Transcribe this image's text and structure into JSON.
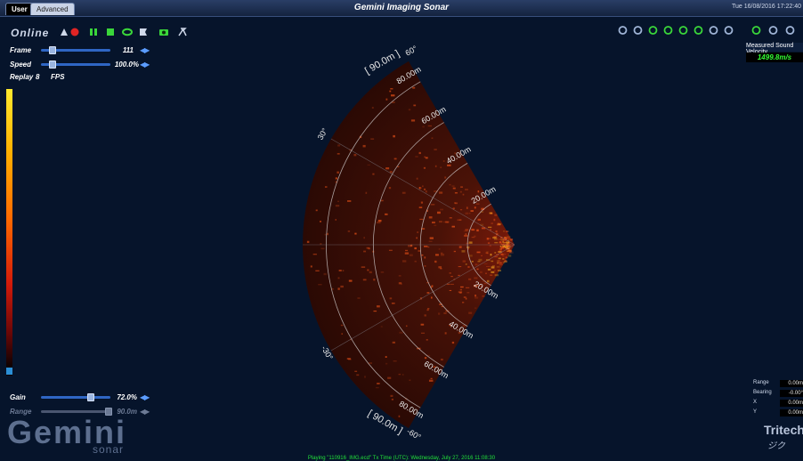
{
  "window": {
    "title": "Gemini Imaging Sonar",
    "tabs": [
      {
        "label": "User",
        "active": true
      },
      {
        "label": "Advanced",
        "active": false
      }
    ],
    "datetime": "Tue 16/08/2016 17:22:40"
  },
  "toolbar": {
    "mode_label": "Online",
    "icons": [
      "sonar-icon",
      "record-icon",
      "pause-icon",
      "stop-icon",
      "loop-icon",
      "bookmark-icon",
      "screenshot-icon",
      "settings-icon"
    ]
  },
  "controls": {
    "frame": {
      "label": "Frame",
      "value": "111",
      "level": 0.12
    },
    "speed": {
      "label": "Speed",
      "value": "100.0%",
      "level": 0.12
    },
    "replay": {
      "label": "Replay",
      "fps_value": "8",
      "fps_unit": "FPS"
    },
    "gain": {
      "label": "Gain",
      "value": "72.0%",
      "level": 0.72
    },
    "range": {
      "label": "Range",
      "value": "90.0m",
      "level": 1.0
    }
  },
  "colorbar": {
    "label": "Palette"
  },
  "right_toolbar": {
    "icons": [
      "zoom-icon",
      "waveform-icon",
      "frequency-icon",
      "gain-icon",
      "chirp-icon",
      "signal-icon",
      "search-icon",
      "measure-icon",
      "mode-icon",
      "target-icon",
      "fish-icon"
    ]
  },
  "sound_velocity": {
    "label": "Measured Sound Velocity",
    "value": "1499.8m/s"
  },
  "cursor_info": [
    {
      "label": "Range",
      "value": "0.00m"
    },
    {
      "label": "Bearing",
      "value": "-0.00°"
    },
    {
      "label": "X",
      "value": "0.00m"
    },
    {
      "label": "Y",
      "value": "0.00m"
    }
  ],
  "sonar": {
    "range_labels": [
      "20.00m",
      "40.00m",
      "60.00m",
      "80.00m"
    ],
    "max_range_label": "[ 90.0m ]",
    "angle_labels": [
      "60°",
      "30°",
      "-30°",
      "-60°"
    ],
    "colors": {
      "wedge": "#3a0c05",
      "rings": "#c9c4c4",
      "echo": "#ff5a1a",
      "highlight": "#ffb020"
    }
  },
  "status": {
    "playing": "Playing \"110916_IMG.ecd\" Tx Time (UTC): Wednesday, July 27, 2016 11:08:30"
  },
  "branding": {
    "logo": "Gemini",
    "logo_sub": "sonar",
    "brand": "Tritech",
    "brand_mark": "ジク"
  }
}
